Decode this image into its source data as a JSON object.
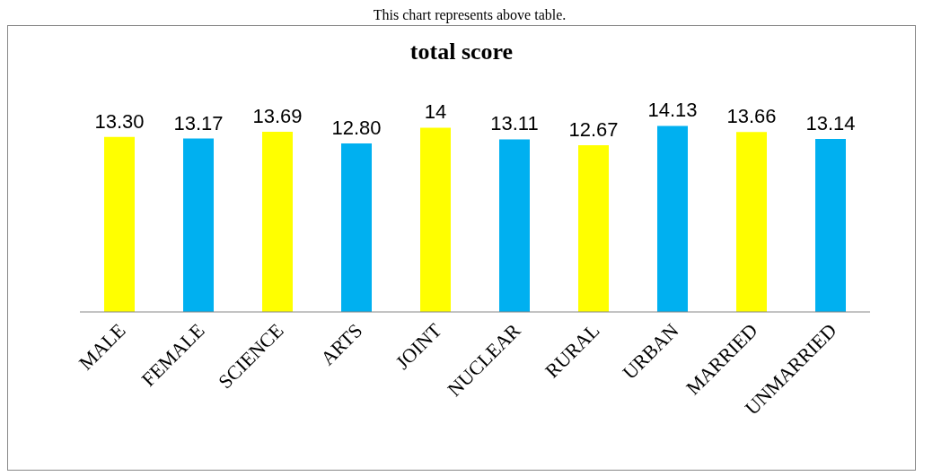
{
  "chart_data": {
    "type": "bar",
    "title": "total score",
    "annotations": [
      "This chart represents above table."
    ],
    "categories": [
      "MALE",
      "FEMALE",
      "SCIENCE",
      "ARTS",
      "JOINT",
      "NUCLEAR",
      "RURAL",
      "URBAN",
      "MARRIED",
      "UNMARRIED"
    ],
    "values": [
      13.3,
      13.17,
      13.69,
      12.8,
      14,
      13.11,
      12.67,
      14.13,
      13.66,
      13.14
    ],
    "value_labels": [
      "13.30",
      "13.17",
      "13.69",
      "12.80",
      "14",
      "13.11",
      "12.67",
      "14.13",
      "13.66",
      "13.14"
    ],
    "colors": [
      "#ffff00",
      "#00b0f0",
      "#ffff00",
      "#00b0f0",
      "#ffff00",
      "#00b0f0",
      "#ffff00",
      "#00b0f0",
      "#ffff00",
      "#00b0f0"
    ],
    "grid": false,
    "legend": false
  }
}
